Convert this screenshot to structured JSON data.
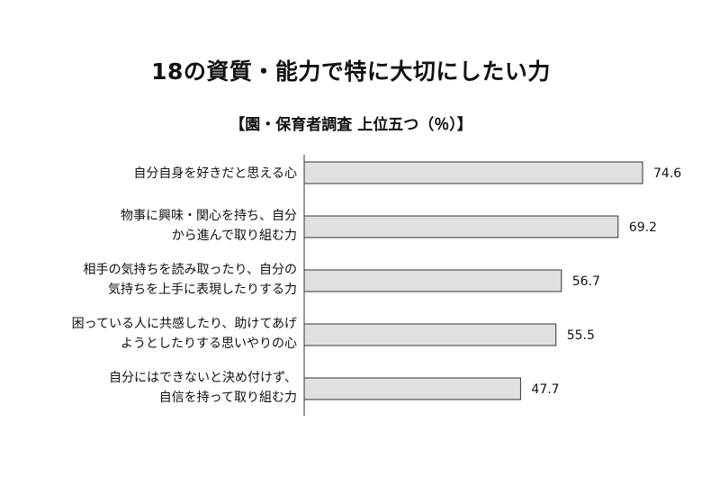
{
  "title": "18の資質・能力で特に大切にしたい力",
  "subtitle": "【園・保育者調査 上位五つ（％）】",
  "chart_data": {
    "type": "bar",
    "orientation": "horizontal",
    "title": "18の資質・能力で特に大切にしたい力",
    "subtitle": "【園・保育者調査 上位五つ（％）】",
    "categories": [
      [
        "自分自身を好きだと思える心"
      ],
      [
        "物事に興味・関心を持ち、自分",
        "から進んで取り組む力"
      ],
      [
        "相手の気持ちを読み取ったり、自分の",
        "気持ちを上手に表現したりする力"
      ],
      [
        "困っている人に共感したり、助けてあげ",
        "ようとしたりする思いやりの心"
      ],
      [
        "自分にはできないと決め付けず、",
        "自信を持って取り組む力"
      ]
    ],
    "values": [
      74.6,
      69.2,
      56.7,
      55.5,
      47.7
    ],
    "xlim": [
      0,
      74.6
    ],
    "grid": false,
    "legend": "none",
    "bar_color": "#e0e0e0",
    "bar_stroke": "#333333"
  }
}
